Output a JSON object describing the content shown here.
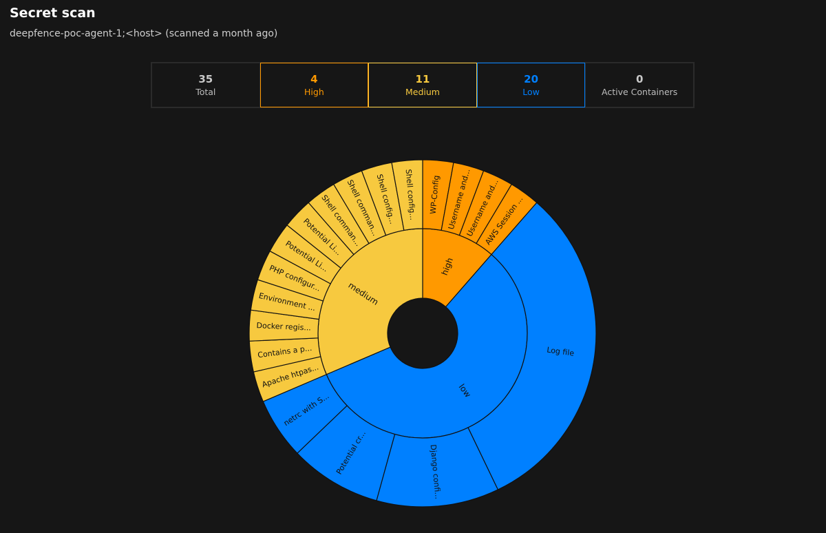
{
  "header": {
    "title": "Secret scan",
    "subtitle": "deepfence-poc-agent-1;<host> (scanned a month ago)"
  },
  "stats": {
    "total": {
      "value": "35",
      "label": "Total"
    },
    "high": {
      "value": "4",
      "label": "High"
    },
    "medium": {
      "value": "11",
      "label": "Medium"
    },
    "low": {
      "value": "20",
      "label": "Low"
    },
    "containers": {
      "value": "0",
      "label": "Active Containers"
    }
  },
  "colors": {
    "high": "#ff9900",
    "medium": "#f7c93f",
    "low": "#0080ff",
    "background": "#161616",
    "stroke": "#111111"
  },
  "chart_data": {
    "type": "sunburst",
    "title": "",
    "inner": [
      {
        "name": "high",
        "value": 4,
        "severity": "high"
      },
      {
        "name": "low",
        "value": 20,
        "severity": "low"
      },
      {
        "name": "medium",
        "value": 11,
        "severity": "medium"
      }
    ],
    "outer": [
      {
        "label": "WP-Config",
        "value": 1,
        "parent": "high"
      },
      {
        "label": "Username and...",
        "value": 1,
        "parent": "high"
      },
      {
        "label": "Username and...",
        "value": 1,
        "parent": "high"
      },
      {
        "label": "AWS Session ...",
        "value": 1,
        "parent": "high"
      },
      {
        "label": "Log file",
        "value": 11,
        "parent": "low"
      },
      {
        "label": "Django confi...",
        "value": 4,
        "parent": "low"
      },
      {
        "label": "Potential cr...",
        "value": 3,
        "parent": "low"
      },
      {
        "label": "netrc with S...",
        "value": 2,
        "parent": "low"
      },
      {
        "label": "Apache htpas...",
        "value": 1,
        "parent": "medium"
      },
      {
        "label": "Contains a p...",
        "value": 1,
        "parent": "medium"
      },
      {
        "label": "Docker regis...",
        "value": 1,
        "parent": "medium"
      },
      {
        "label": "Environment ...",
        "value": 1,
        "parent": "medium"
      },
      {
        "label": "PHP configur...",
        "value": 1,
        "parent": "medium"
      },
      {
        "label": "Potential Li...",
        "value": 1,
        "parent": "medium"
      },
      {
        "label": "Potential Li...",
        "value": 1,
        "parent": "medium"
      },
      {
        "label": "Shell comman...",
        "value": 1,
        "parent": "medium"
      },
      {
        "label": "Shell comman...",
        "value": 1,
        "parent": "medium"
      },
      {
        "label": "Shell config...",
        "value": 1,
        "parent": "medium"
      },
      {
        "label": "Shell config...",
        "value": 1,
        "parent": "medium"
      }
    ]
  }
}
